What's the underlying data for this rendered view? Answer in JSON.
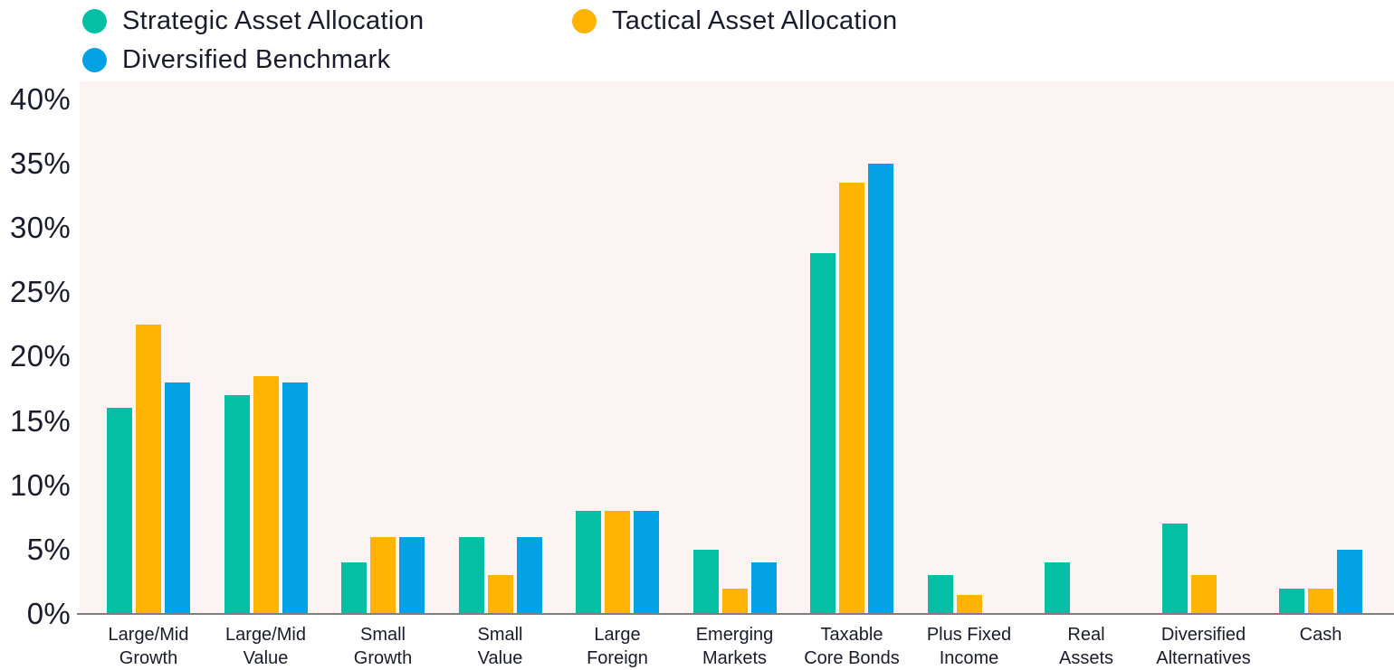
{
  "legend": {
    "items": [
      {
        "label": "Strategic Asset Allocation",
        "color": "#04BFA4"
      },
      {
        "label": "Tactical Asset Allocation",
        "color": "#FFB302"
      },
      {
        "label": "Diversified Benchmark",
        "color": "#02A2E4"
      }
    ]
  },
  "y_axis": {
    "ticks": [
      "40%",
      "35%",
      "30%",
      "25%",
      "20%",
      "15%",
      "10%",
      "5%",
      "0%"
    ]
  },
  "chart_data": {
    "type": "bar",
    "title": "",
    "xlabel": "",
    "ylabel": "",
    "categories": [
      "Large/Mid Growth",
      "Large/Mid Value",
      "Small Growth",
      "Small Value",
      "Large Foreign",
      "Emerging Markets",
      "Taxable Core Bonds",
      "Plus Fixed Income",
      "Real Assets",
      "Diversified Alternatives",
      "Cash"
    ],
    "category_label_lines": [
      "Large/Mid\nGrowth",
      "Large/Mid\nValue",
      "Small\nGrowth",
      "Small\nValue",
      "Large\nForeign",
      "Emerging\nMarkets",
      "Taxable\nCore Bonds",
      "Plus Fixed\nIncome",
      "Real\nAssets",
      "Diversified\nAlternatives",
      "Cash"
    ],
    "series": [
      {
        "name": "Strategic Asset Allocation",
        "color": "#04BFA4",
        "values": [
          16,
          17,
          4,
          6,
          8,
          5,
          28,
          3,
          4,
          7,
          2
        ]
      },
      {
        "name": "Tactical Asset Allocation",
        "color": "#FFB302",
        "values": [
          22.5,
          18.5,
          6,
          3,
          8,
          2,
          33.5,
          1.5,
          0,
          3,
          2
        ]
      },
      {
        "name": "Diversified Benchmark",
        "color": "#02A2E4",
        "values": [
          18,
          18,
          6,
          6,
          8,
          4,
          35,
          0,
          0,
          0,
          5
        ]
      }
    ],
    "ylim": [
      0,
      40
    ],
    "ytick_step": 5,
    "ytick_format": "percent",
    "grid": false,
    "legend_position": "top-left",
    "plot_background": "#FBF4F2",
    "axis_line_color": "#7F7F7F"
  }
}
